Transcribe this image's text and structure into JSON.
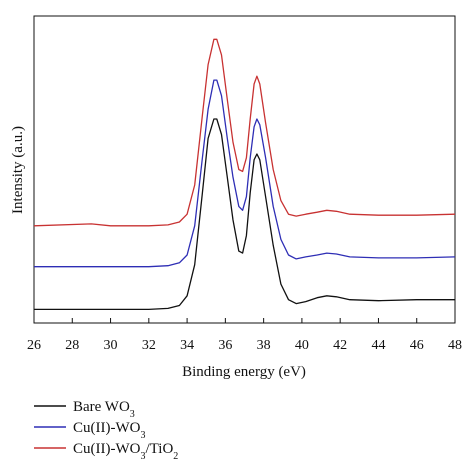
{
  "chart_data": {
    "type": "line",
    "title": "",
    "xlabel": "Binding energy (eV)",
    "ylabel": "Intensity (a.u.)",
    "xlim": [
      26,
      48
    ],
    "xticks": [
      26,
      28,
      30,
      32,
      34,
      36,
      38,
      40,
      42,
      44,
      46,
      48
    ],
    "y_ticks_shown": false,
    "grid": false,
    "legend_position": "bottom-left, below plot",
    "series": [
      {
        "name": "Bare WO3",
        "name_base": "Bare WO",
        "name_sub": "3",
        "name_rest": "",
        "color": "#111111",
        "x": [
          26,
          30,
          32,
          33,
          33.6,
          34.0,
          34.4,
          34.8,
          35.1,
          35.4,
          35.55,
          35.8,
          36.1,
          36.4,
          36.7,
          36.9,
          37.1,
          37.3,
          37.5,
          37.65,
          37.8,
          38.1,
          38.5,
          38.9,
          39.3,
          39.7,
          40.2,
          40.8,
          41.3,
          41.8,
          42.5,
          44,
          46,
          48
        ],
        "y": [
          0.02,
          0.02,
          0.02,
          0.025,
          0.04,
          0.09,
          0.25,
          0.62,
          0.9,
          1.0,
          1.0,
          0.92,
          0.7,
          0.48,
          0.32,
          0.31,
          0.4,
          0.62,
          0.79,
          0.82,
          0.79,
          0.6,
          0.35,
          0.15,
          0.07,
          0.05,
          0.06,
          0.08,
          0.09,
          0.085,
          0.07,
          0.065,
          0.07,
          0.07
        ]
      },
      {
        "name": "Cu(II)-WO3",
        "name_base": "Cu(II)-WO",
        "name_sub": "3",
        "name_rest": "",
        "color": "#2e2eb5",
        "x": [
          26,
          30,
          32,
          33,
          33.6,
          34.0,
          34.4,
          34.8,
          35.1,
          35.4,
          35.55,
          35.8,
          36.1,
          36.4,
          36.7,
          36.9,
          37.1,
          37.3,
          37.5,
          37.65,
          37.8,
          38.1,
          38.5,
          38.9,
          39.3,
          39.7,
          40.2,
          40.8,
          41.3,
          41.8,
          42.5,
          44,
          46,
          48
        ],
        "y": [
          0.24,
          0.24,
          0.24,
          0.245,
          0.26,
          0.3,
          0.45,
          0.8,
          1.05,
          1.2,
          1.2,
          1.12,
          0.9,
          0.7,
          0.55,
          0.53,
          0.6,
          0.8,
          0.96,
          1.0,
          0.97,
          0.8,
          0.55,
          0.38,
          0.3,
          0.28,
          0.29,
          0.3,
          0.31,
          0.305,
          0.29,
          0.285,
          0.285,
          0.29
        ]
      },
      {
        "name": "Cu(II)-WO3/TiO2",
        "name_base": "Cu(II)-WO",
        "name_sub": "3",
        "name_rest": "/TiO",
        "name_sub2": "2",
        "color": "#c83232",
        "x": [
          26,
          29,
          30,
          32,
          33,
          33.6,
          34.0,
          34.4,
          34.8,
          35.1,
          35.4,
          35.55,
          35.8,
          36.1,
          36.4,
          36.7,
          36.9,
          37.1,
          37.3,
          37.5,
          37.65,
          37.8,
          38.1,
          38.5,
          38.9,
          39.3,
          39.7,
          40.2,
          40.8,
          41.3,
          41.8,
          42.5,
          44,
          46,
          48
        ],
        "y": [
          0.45,
          0.46,
          0.45,
          0.45,
          0.455,
          0.47,
          0.51,
          0.66,
          1.02,
          1.28,
          1.41,
          1.41,
          1.33,
          1.1,
          0.88,
          0.74,
          0.73,
          0.8,
          1.0,
          1.18,
          1.22,
          1.18,
          0.98,
          0.74,
          0.58,
          0.51,
          0.5,
          0.51,
          0.52,
          0.53,
          0.525,
          0.51,
          0.505,
          0.505,
          0.51
        ]
      }
    ]
  }
}
